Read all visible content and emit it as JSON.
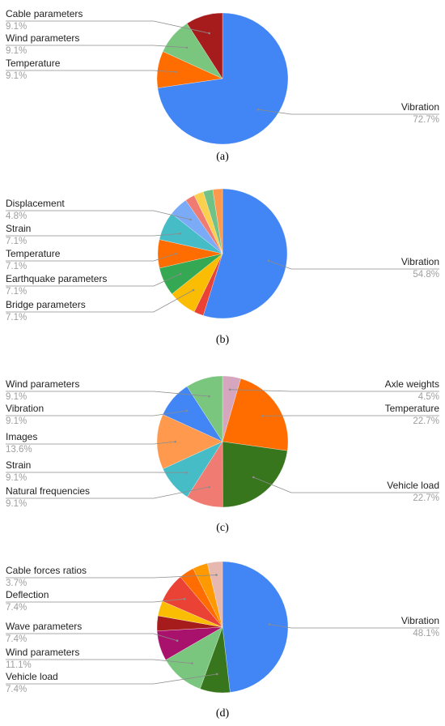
{
  "chart_data": [
    {
      "type": "pie",
      "caption": "(a)",
      "start_angle_deg": 0,
      "slices": [
        {
          "label": "Vibration",
          "percent_label": "72.7%",
          "value": 72.7,
          "color": "#4285f4"
        },
        {
          "label": "Temperature",
          "percent_label": "9.1%",
          "value": 9.1,
          "color": "#ff6d01"
        },
        {
          "label": "Wind parameters",
          "percent_label": "9.1%",
          "value": 9.1,
          "color": "#7bc67e"
        },
        {
          "label": "Cable parameters",
          "percent_label": "9.1%",
          "value": 9.1,
          "color": "#a61c1c"
        }
      ]
    },
    {
      "type": "pie",
      "caption": "(b)",
      "start_angle_deg": 0,
      "slices": [
        {
          "label": "Vibration",
          "percent_label": "54.8%",
          "value": 54.8,
          "color": "#4285f4"
        },
        {
          "label": "",
          "percent_label": "",
          "value": 2.4,
          "color": "#ea4335"
        },
        {
          "label": "Bridge parameters",
          "percent_label": "7.1%",
          "value": 7.1,
          "color": "#fbbc04"
        },
        {
          "label": "Earthquake parameters",
          "percent_label": "7.1%",
          "value": 7.1,
          "color": "#34a853"
        },
        {
          "label": "Temperature",
          "percent_label": "7.1%",
          "value": 7.1,
          "color": "#ff6d01"
        },
        {
          "label": "Strain",
          "percent_label": "7.1%",
          "value": 7.1,
          "color": "#46bdc6"
        },
        {
          "label": "Displacement",
          "percent_label": "4.8%",
          "value": 4.8,
          "color": "#7baaf7"
        },
        {
          "label": "",
          "percent_label": "",
          "value": 2.4,
          "color": "#f07b72"
        },
        {
          "label": "",
          "percent_label": "",
          "value": 2.4,
          "color": "#fcd04f"
        },
        {
          "label": "",
          "percent_label": "",
          "value": 2.4,
          "color": "#71c287"
        },
        {
          "label": "",
          "percent_label": "",
          "value": 2.4,
          "color": "#ff994d"
        }
      ]
    },
    {
      "type": "pie",
      "caption": "(c)",
      "start_angle_deg": 0,
      "slices": [
        {
          "label": "Axle weights",
          "percent_label": "4.5%",
          "value": 4.5,
          "color": "#d5a6bd"
        },
        {
          "label": "Temperature",
          "percent_label": "22.7%",
          "value": 22.7,
          "color": "#ff6d01"
        },
        {
          "label": "Vehicle load",
          "percent_label": "22.7%",
          "value": 22.7,
          "color": "#38761d"
        },
        {
          "label": "Natural frequencies",
          "percent_label": "9.1%",
          "value": 9.1,
          "color": "#f07b72"
        },
        {
          "label": "Strain",
          "percent_label": "9.1%",
          "value": 9.1,
          "color": "#46bdc6"
        },
        {
          "label": "Images",
          "percent_label": "13.6%",
          "value": 13.6,
          "color": "#ff994d"
        },
        {
          "label": "Vibration",
          "percent_label": "9.1%",
          "value": 9.1,
          "color": "#4285f4"
        },
        {
          "label": "Wind parameters",
          "percent_label": "9.1%",
          "value": 9.1,
          "color": "#7bc67e"
        }
      ]
    },
    {
      "type": "pie",
      "caption": "(d)",
      "start_angle_deg": 0,
      "slices": [
        {
          "label": "Vibration",
          "percent_label": "48.1%",
          "value": 48.1,
          "color": "#4285f4"
        },
        {
          "label": "Vehicle load",
          "percent_label": "7.4%",
          "value": 7.4,
          "color": "#38761d"
        },
        {
          "label": "Wind parameters",
          "percent_label": "11.1%",
          "value": 11.1,
          "color": "#7bc67e"
        },
        {
          "label": "Wave parameters",
          "percent_label": "7.4%",
          "value": 7.4,
          "color": "#a8126d"
        },
        {
          "label": "",
          "percent_label": "",
          "value": 3.7,
          "color": "#a61c1c"
        },
        {
          "label": "",
          "percent_label": "",
          "value": 3.7,
          "color": "#fbbc04"
        },
        {
          "label": "Deflection",
          "percent_label": "7.4%",
          "value": 7.4,
          "color": "#ea4335"
        },
        {
          "label": "",
          "percent_label": "",
          "value": 3.7,
          "color": "#ff6d01"
        },
        {
          "label": "",
          "percent_label": "",
          "value": 3.7,
          "color": "#ff9900"
        },
        {
          "label": "Cable forces ratios",
          "percent_label": "3.7%",
          "value": 3.7,
          "color": "#e6b8af"
        }
      ]
    }
  ]
}
